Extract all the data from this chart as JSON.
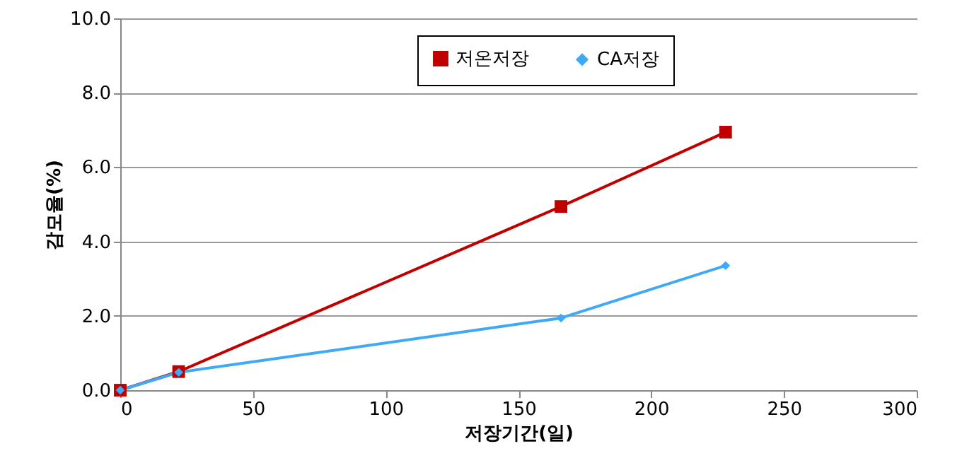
{
  "chart_data": {
    "type": "line",
    "xlabel": "저장기간(일)",
    "ylabel": "감모율(%)",
    "x": [
      0,
      22,
      166,
      228
    ],
    "series": [
      {
        "name": "저온저장",
        "color": "#c00000",
        "marker": "square",
        "values": [
          0,
          0.5,
          4.94,
          6.94
        ]
      },
      {
        "name": "CA저장",
        "color": "#3fa9f5",
        "marker": "diamond",
        "values": [
          0,
          0.48,
          1.94,
          3.35
        ]
      }
    ],
    "xlim": [
      0,
      300
    ],
    "xticks": [
      0,
      50,
      100,
      150,
      200,
      250,
      300
    ],
    "ylim": [
      0,
      10
    ],
    "yticks": [
      {
        "value": 0,
        "label": "0.0"
      },
      {
        "value": 2,
        "label": "2.0"
      },
      {
        "value": 4,
        "label": "4.0"
      },
      {
        "value": 6,
        "label": "6.0"
      },
      {
        "value": 8,
        "label": "8.0"
      },
      {
        "value": 10,
        "label": "10.0"
      }
    ],
    "grid": "y",
    "legend": "top right",
    "line_style": "solid"
  }
}
